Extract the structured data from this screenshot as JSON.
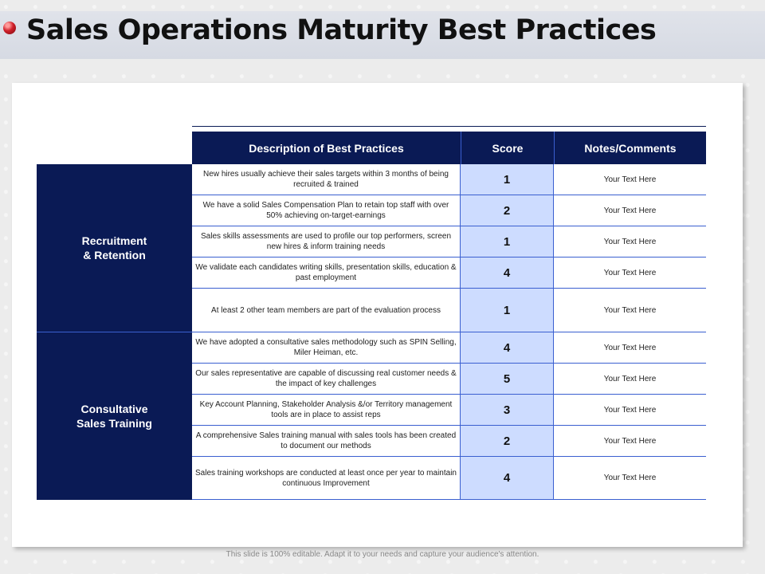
{
  "slide": {
    "title": "Sales Operations Maturity Best Practices",
    "footer": "This slide is 100% editable. Adapt it to your needs and capture your audience's attention."
  },
  "table": {
    "headers": {
      "description": "Description of Best Practices",
      "score": "Score",
      "notes": "Notes/Comments"
    },
    "groups": [
      {
        "label_line1": "Recruitment",
        "label_line2": "& Retention"
      },
      {
        "label_line1": "Consultative",
        "label_line2": "Sales Training"
      }
    ],
    "rows": [
      {
        "description": "New hires usually achieve their sales targets within 3 months of being recruited & trained",
        "score": "1",
        "notes": "Your Text Here"
      },
      {
        "description": "We have a solid Sales Compensation Plan to retain top staff with over 50% achieving on-target-earnings",
        "score": "2",
        "notes": "Your Text Here"
      },
      {
        "description": "Sales skills assessments are used to profile our top performers, screen new hires & inform training needs",
        "score": "1",
        "notes": "Your Text Here"
      },
      {
        "description": "We validate each candidates writing skills, presentation skills, education & past employment",
        "score": "4",
        "notes": "Your Text Here"
      },
      {
        "description": "At least 2 other team members are part of the evaluation process",
        "score": "1",
        "notes": "Your Text Here"
      },
      {
        "description": "We have adopted a consultative sales methodology such as SPIN Selling, Miler Heiman, etc.",
        "score": "4",
        "notes": "Your Text Here"
      },
      {
        "description": "Our sales representative are capable of discussing real customer needs & the impact of key challenges",
        "score": "5",
        "notes": "Your Text Here"
      },
      {
        "description": "Key Account Planning, Stakeholder Analysis &/or Territory management tools are in place to assist reps",
        "score": "3",
        "notes": "Your Text Here"
      },
      {
        "description": "A comprehensive Sales training manual with sales tools has been created to document our methods",
        "score": "2",
        "notes": "Your Text Here"
      },
      {
        "description": "Sales training workshops are conducted at least once per year to maintain continuous Improvement",
        "score": "4",
        "notes": "Your Text Here"
      }
    ]
  }
}
